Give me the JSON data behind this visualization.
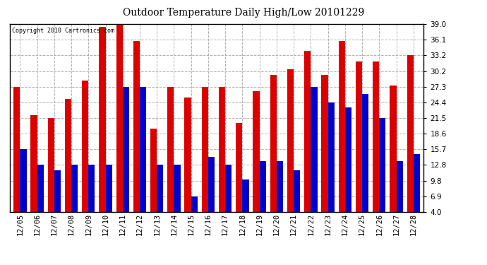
{
  "title": "Outdoor Temperature Daily High/Low 20101229",
  "copyright": "Copyright 2010 Cartronics.com",
  "categories": [
    "12/05",
    "12/06",
    "12/07",
    "12/08",
    "12/09",
    "12/10",
    "12/11",
    "12/12",
    "12/13",
    "12/14",
    "12/15",
    "12/16",
    "12/17",
    "12/18",
    "12/19",
    "12/20",
    "12/21",
    "12/22",
    "12/23",
    "12/24",
    "12/25",
    "12/26",
    "12/27",
    "12/28"
  ],
  "highs": [
    27.3,
    22.0,
    21.5,
    25.0,
    28.5,
    38.5,
    38.8,
    35.8,
    19.5,
    27.3,
    25.3,
    27.3,
    27.3,
    20.5,
    26.5,
    29.5,
    30.5,
    34.0,
    29.5,
    35.8,
    32.0,
    32.0,
    27.5,
    33.2
  ],
  "lows": [
    15.7,
    12.8,
    11.8,
    12.8,
    12.8,
    12.8,
    27.3,
    27.3,
    12.8,
    12.8,
    6.9,
    14.2,
    12.8,
    10.0,
    13.5,
    13.5,
    11.8,
    27.3,
    24.4,
    23.5,
    26.0,
    21.5,
    13.5,
    14.8
  ],
  "high_color": "#dd0000",
  "low_color": "#0000cc",
  "bg_color": "#ffffff",
  "grid_color": "#aaaaaa",
  "yticks": [
    4.0,
    6.9,
    9.8,
    12.8,
    15.7,
    18.6,
    21.5,
    24.4,
    27.3,
    30.2,
    33.2,
    36.1,
    39.0
  ],
  "ymin": 4.0,
  "ymax": 39.0
}
